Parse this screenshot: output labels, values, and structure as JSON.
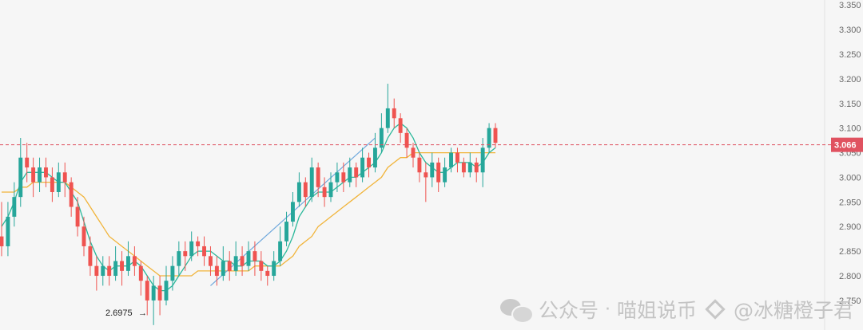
{
  "chart_data": {
    "type": "candlestick",
    "y_axis": {
      "ticks": [
        3.35,
        3.3,
        3.25,
        3.2,
        3.15,
        3.1,
        3.05,
        3.0,
        2.95,
        2.9,
        2.85,
        2.8,
        2.75
      ],
      "tick_labels": [
        "3.350",
        "3.300",
        "3.250",
        "3.200",
        "3.150",
        "3.100",
        "3.050",
        "3.000",
        "2.950",
        "2.900",
        "2.850",
        "2.800",
        "2.750"
      ],
      "range": [
        2.69,
        3.36
      ]
    },
    "current_price": {
      "value": 3.066,
      "label": "3.066",
      "color": "#e05260",
      "line": "dashed"
    },
    "low_annotation": {
      "value": 2.6975,
      "label": "2.6975",
      "arrow": "→"
    },
    "colors": {
      "up": "#26a69a",
      "down": "#ef5350",
      "ma_fast": "#2bb89a",
      "ma_slow": "#f1b43a",
      "trendline": "#6fa8dc"
    },
    "candles": [
      [
        2.88,
        2.86,
        2.95,
        2.84
      ],
      [
        2.86,
        2.92,
        2.95,
        2.84
      ],
      [
        2.92,
        2.96,
        2.99,
        2.9
      ],
      [
        2.96,
        3.04,
        3.08,
        2.94
      ],
      [
        3.04,
        3.02,
        3.07,
        2.99
      ],
      [
        3.02,
        2.99,
        3.04,
        2.96
      ],
      [
        2.99,
        3.02,
        3.04,
        2.97
      ],
      [
        3.02,
        3.0,
        3.04,
        2.98
      ],
      [
        3.0,
        2.97,
        3.02,
        2.95
      ],
      [
        2.97,
        3.01,
        3.03,
        2.96
      ],
      [
        3.01,
        2.99,
        3.03,
        2.96
      ],
      [
        2.99,
        2.94,
        3.0,
        2.92
      ],
      [
        2.94,
        2.9,
        2.96,
        2.88
      ],
      [
        2.9,
        2.86,
        2.92,
        2.84
      ],
      [
        2.86,
        2.82,
        2.88,
        2.8
      ],
      [
        2.82,
        2.8,
        2.84,
        2.77
      ],
      [
        2.8,
        2.82,
        2.84,
        2.78
      ],
      [
        2.82,
        2.8,
        2.84,
        2.78
      ],
      [
        2.8,
        2.83,
        2.86,
        2.79
      ],
      [
        2.83,
        2.81,
        2.85,
        2.78
      ],
      [
        2.81,
        2.84,
        2.87,
        2.8
      ],
      [
        2.84,
        2.82,
        2.86,
        2.8
      ],
      [
        2.82,
        2.79,
        2.83,
        2.76
      ],
      [
        2.79,
        2.75,
        2.8,
        2.72
      ],
      [
        2.75,
        2.78,
        2.8,
        2.7
      ],
      [
        2.78,
        2.75,
        2.8,
        2.72
      ],
      [
        2.75,
        2.79,
        2.82,
        2.74
      ],
      [
        2.79,
        2.82,
        2.84,
        2.77
      ],
      [
        2.82,
        2.85,
        2.87,
        2.8
      ],
      [
        2.85,
        2.84,
        2.87,
        2.81
      ],
      [
        2.84,
        2.87,
        2.89,
        2.83
      ],
      [
        2.87,
        2.86,
        2.88,
        2.84
      ],
      [
        2.86,
        2.84,
        2.88,
        2.82
      ],
      [
        2.84,
        2.82,
        2.86,
        2.8
      ],
      [
        2.82,
        2.8,
        2.84,
        2.78
      ],
      [
        2.8,
        2.83,
        2.86,
        2.79
      ],
      [
        2.83,
        2.81,
        2.85,
        2.79
      ],
      [
        2.81,
        2.84,
        2.87,
        2.8
      ],
      [
        2.84,
        2.82,
        2.86,
        2.8
      ],
      [
        2.82,
        2.85,
        2.87,
        2.81
      ],
      [
        2.85,
        2.83,
        2.87,
        2.8
      ],
      [
        2.83,
        2.81,
        2.85,
        2.79
      ],
      [
        2.81,
        2.8,
        2.82,
        2.78
      ],
      [
        2.8,
        2.83,
        2.85,
        2.79
      ],
      [
        2.83,
        2.87,
        2.9,
        2.82
      ],
      [
        2.87,
        2.91,
        2.93,
        2.86
      ],
      [
        2.91,
        2.95,
        2.97,
        2.9
      ],
      [
        2.95,
        2.99,
        3.01,
        2.94
      ],
      [
        2.99,
        2.96,
        3.0,
        2.94
      ],
      [
        2.96,
        3.02,
        3.04,
        2.95
      ],
      [
        3.02,
        2.98,
        3.03,
        2.96
      ],
      [
        2.98,
        2.96,
        3.0,
        2.94
      ],
      [
        2.96,
        2.99,
        3.01,
        2.95
      ],
      [
        2.99,
        3.01,
        3.03,
        2.97
      ],
      [
        3.01,
        2.99,
        3.03,
        2.97
      ],
      [
        2.99,
        3.02,
        3.04,
        2.98
      ],
      [
        3.02,
        3.0,
        3.03,
        2.98
      ],
      [
        3.0,
        3.04,
        3.06,
        2.99
      ],
      [
        3.04,
        3.02,
        3.05,
        3.0
      ],
      [
        3.02,
        3.06,
        3.09,
        3.01
      ],
      [
        3.06,
        3.1,
        3.13,
        3.05
      ],
      [
        3.1,
        3.14,
        3.19,
        3.09
      ],
      [
        3.14,
        3.12,
        3.16,
        3.1
      ],
      [
        3.12,
        3.09,
        3.13,
        3.07
      ],
      [
        3.09,
        3.06,
        3.1,
        3.04
      ],
      [
        3.06,
        3.04,
        3.07,
        3.02
      ],
      [
        3.04,
        3.01,
        3.05,
        2.99
      ],
      [
        3.01,
        3.0,
        3.03,
        2.95
      ],
      [
        3.0,
        3.03,
        3.05,
        2.98
      ],
      [
        3.03,
        2.99,
        3.04,
        2.97
      ],
      [
        2.99,
        3.02,
        3.04,
        2.98
      ],
      [
        3.02,
        3.05,
        3.06,
        3.01
      ],
      [
        3.05,
        3.03,
        3.06,
        3.01
      ],
      [
        3.03,
        3.01,
        3.04,
        3.0
      ],
      [
        3.01,
        3.03,
        3.05,
        3.0
      ],
      [
        3.03,
        3.01,
        3.04,
        2.99
      ],
      [
        3.01,
        3.06,
        3.08,
        2.98
      ],
      [
        3.06,
        3.1,
        3.11,
        3.05
      ],
      [
        3.1,
        3.07,
        3.11,
        3.06
      ]
    ],
    "ma_fast": [
      2.9,
      2.92,
      2.95,
      2.99,
      3.01,
      3.01,
      3.01,
      3.01,
      3.0,
      2.99,
      2.99,
      2.97,
      2.95,
      2.91,
      2.87,
      2.84,
      2.82,
      2.81,
      2.82,
      2.82,
      2.82,
      2.83,
      2.82,
      2.8,
      2.78,
      2.77,
      2.77,
      2.78,
      2.8,
      2.82,
      2.84,
      2.85,
      2.85,
      2.85,
      2.84,
      2.83,
      2.83,
      2.82,
      2.82,
      2.83,
      2.83,
      2.83,
      2.82,
      2.82,
      2.83,
      2.85,
      2.88,
      2.92,
      2.94,
      2.96,
      2.97,
      2.97,
      2.97,
      2.98,
      2.99,
      3.0,
      3.0,
      3.01,
      3.02,
      3.03,
      3.05,
      3.08,
      3.1,
      3.11,
      3.1,
      3.08,
      3.05,
      3.03,
      3.02,
      3.01,
      3.01,
      3.02,
      3.03,
      3.03,
      3.03,
      3.02,
      3.03,
      3.05,
      3.06
    ],
    "ma_slow": [
      2.97,
      2.97,
      2.97,
      2.98,
      2.98,
      2.99,
      2.99,
      2.99,
      2.99,
      2.99,
      2.99,
      2.98,
      2.97,
      2.96,
      2.94,
      2.92,
      2.9,
      2.88,
      2.87,
      2.86,
      2.85,
      2.84,
      2.83,
      2.82,
      2.81,
      2.8,
      2.8,
      2.8,
      2.8,
      2.8,
      2.8,
      2.81,
      2.81,
      2.81,
      2.81,
      2.81,
      2.81,
      2.81,
      2.81,
      2.81,
      2.82,
      2.82,
      2.82,
      2.82,
      2.82,
      2.83,
      2.84,
      2.86,
      2.87,
      2.88,
      2.9,
      2.91,
      2.92,
      2.93,
      2.94,
      2.95,
      2.96,
      2.97,
      2.98,
      2.99,
      3.0,
      3.02,
      3.03,
      3.04,
      3.04,
      3.05,
      3.05,
      3.05,
      3.05,
      3.05,
      3.05,
      3.05,
      3.05,
      3.05,
      3.05,
      3.05,
      3.05,
      3.05,
      3.05
    ],
    "trendline": {
      "from": [
        33,
        2.78
      ],
      "to": [
        59,
        3.08
      ]
    }
  },
  "watermark": {
    "text1": "公众号",
    "dot": "·",
    "text2": "喵姐说币",
    "text3": "@冰糖橙子君",
    "icons": [
      "wechat-icon",
      "binance-icon"
    ]
  }
}
